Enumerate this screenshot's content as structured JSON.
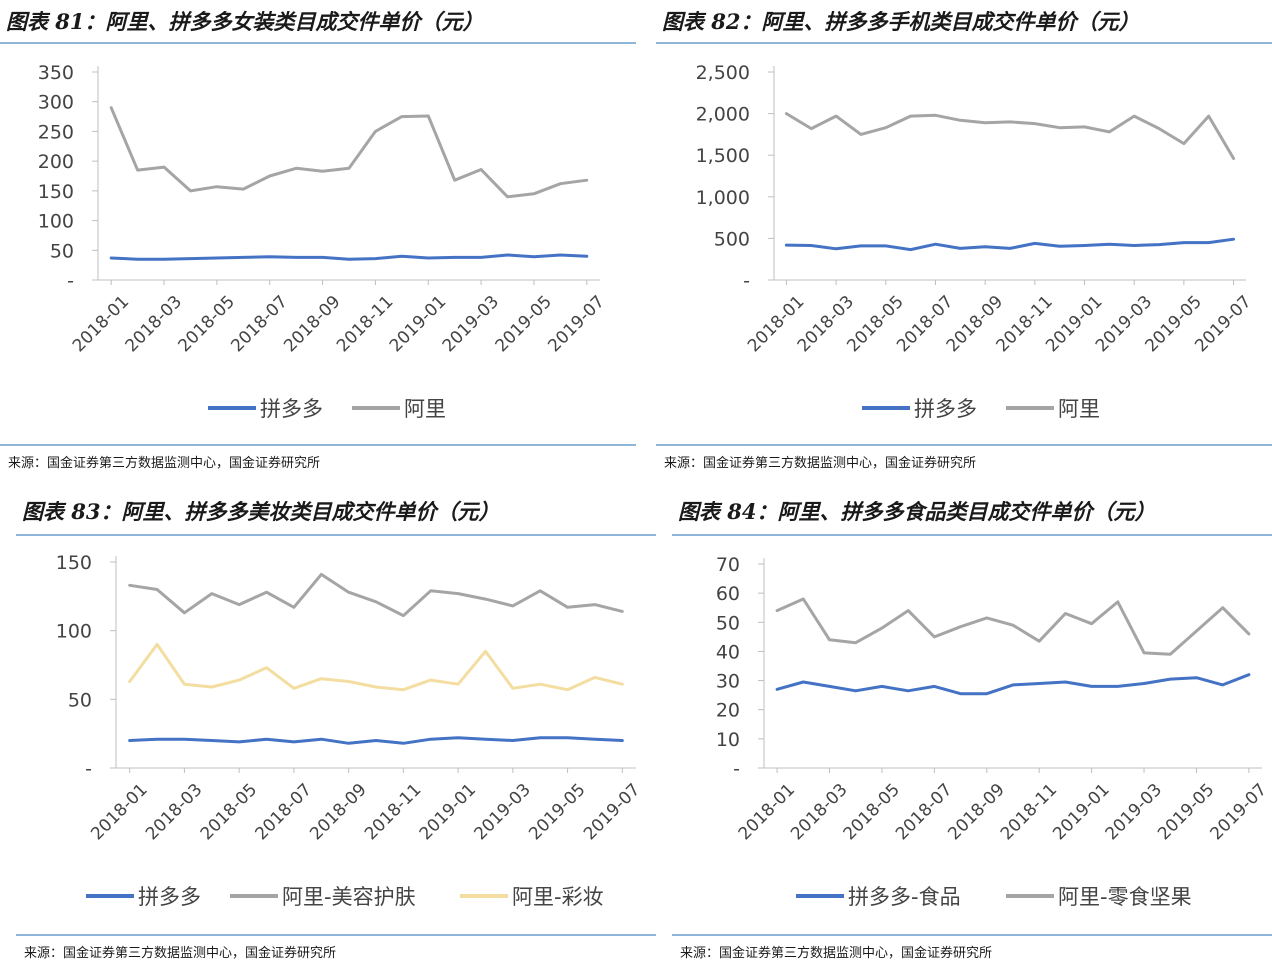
{
  "charts": [
    {
      "title": "图表 81：阿里、拼多多女装类目成交件单价（元）",
      "source": "来源：国金证券第三方数据监测中心，国金证券研究所",
      "type": "line",
      "yticks": [
        "-",
        "50",
        "100",
        "150",
        "200",
        "250",
        "300",
        "350"
      ],
      "ylim": [
        0,
        350
      ],
      "series": [
        {
          "name": "拼多多",
          "color": "#4472c4",
          "values": [
            37,
            35,
            35,
            36,
            37,
            38,
            39,
            38,
            38,
            35,
            36,
            40,
            37,
            38,
            38,
            42,
            39,
            42,
            40
          ]
        },
        {
          "name": "阿里",
          "color": "#a5a5a5",
          "values": [
            290,
            185,
            190,
            150,
            157,
            153,
            175,
            188,
            183,
            188,
            250,
            275,
            276,
            168,
            186,
            140,
            145,
            162,
            168
          ]
        }
      ]
    },
    {
      "title": "图表 82：阿里、拼多多手机类目成交件单价（元）",
      "source": "来源：国金证券第三方数据监测中心，国金证券研究所",
      "type": "line",
      "yticks": [
        "-",
        "500",
        "1,000",
        "1,500",
        "2,000",
        "2,500"
      ],
      "ylim": [
        0,
        2500
      ],
      "series": [
        {
          "name": "拼多多",
          "color": "#4472c4",
          "values": [
            420,
            415,
            375,
            410,
            410,
            365,
            430,
            380,
            400,
            380,
            440,
            405,
            415,
            430,
            415,
            425,
            450,
            450,
            490
          ]
        },
        {
          "name": "阿里",
          "color": "#a5a5a5",
          "values": [
            2000,
            1820,
            1970,
            1750,
            1830,
            1970,
            1980,
            1920,
            1890,
            1900,
            1880,
            1830,
            1840,
            1780,
            1970,
            1820,
            1640,
            1970,
            1460
          ]
        }
      ]
    },
    {
      "title": "图表 83：阿里、拼多多美妆类目成交件单价（元）",
      "source": "来源：国金证券第三方数据监测中心，国金证券研究所",
      "type": "line",
      "yticks": [
        "-",
        "50",
        "100",
        "150"
      ],
      "ylim": [
        0,
        150
      ],
      "series": [
        {
          "name": "拼多多",
          "color": "#4472c4",
          "values": [
            20,
            21,
            21,
            20,
            19,
            21,
            19,
            21,
            18,
            20,
            18,
            21,
            22,
            21,
            20,
            22,
            22,
            21,
            20
          ]
        },
        {
          "name": "阿里-美容护肤",
          "color": "#a5a5a5",
          "values": [
            133,
            130,
            113,
            127,
            119,
            128,
            117,
            141,
            128,
            121,
            111,
            129,
            127,
            123,
            118,
            129,
            117,
            119,
            114
          ]
        },
        {
          "name": "阿里-彩妆",
          "color": "#f3dda0",
          "values": [
            63,
            90,
            61,
            59,
            64,
            73,
            58,
            65,
            63,
            59,
            57,
            64,
            61,
            85,
            58,
            61,
            57,
            66,
            61
          ]
        }
      ]
    },
    {
      "title": "图表 84：阿里、拼多多食品类目成交件单价（元）",
      "source": "来源：国金证券第三方数据监测中心，国金证券研究所",
      "type": "line",
      "yticks": [
        "-",
        "10",
        "20",
        "30",
        "40",
        "50",
        "60",
        "70"
      ],
      "ylim": [
        0,
        70
      ],
      "series": [
        {
          "name": "拼多多-食品",
          "color": "#4472c4",
          "values": [
            27,
            29.5,
            28,
            26.5,
            28,
            26.5,
            28,
            25.5,
            25.5,
            28.5,
            29,
            29.5,
            28,
            28,
            29,
            30.5,
            31,
            28.5,
            32
          ]
        },
        {
          "name": "阿里-零食坚果",
          "color": "#a5a5a5",
          "values": [
            54,
            58,
            44,
            43,
            48,
            54,
            45,
            48.5,
            51.5,
            49,
            43.5,
            53,
            49.5,
            57,
            39.5,
            39,
            47,
            55,
            46
          ]
        }
      ]
    }
  ],
  "categories": [
    "2018-01",
    "2018-02",
    "2018-03",
    "2018-04",
    "2018-05",
    "2018-06",
    "2018-07",
    "2018-08",
    "2018-09",
    "2018-10",
    "2018-11",
    "2018-12",
    "2019-01",
    "2019-02",
    "2019-03",
    "2019-04",
    "2019-05",
    "2019-06",
    "2019-07"
  ],
  "xtick_labels": [
    "2018-01",
    "2018-03",
    "2018-05",
    "2018-07",
    "2018-09",
    "2018-11",
    "2019-01",
    "2019-03",
    "2019-05",
    "2019-07"
  ]
}
